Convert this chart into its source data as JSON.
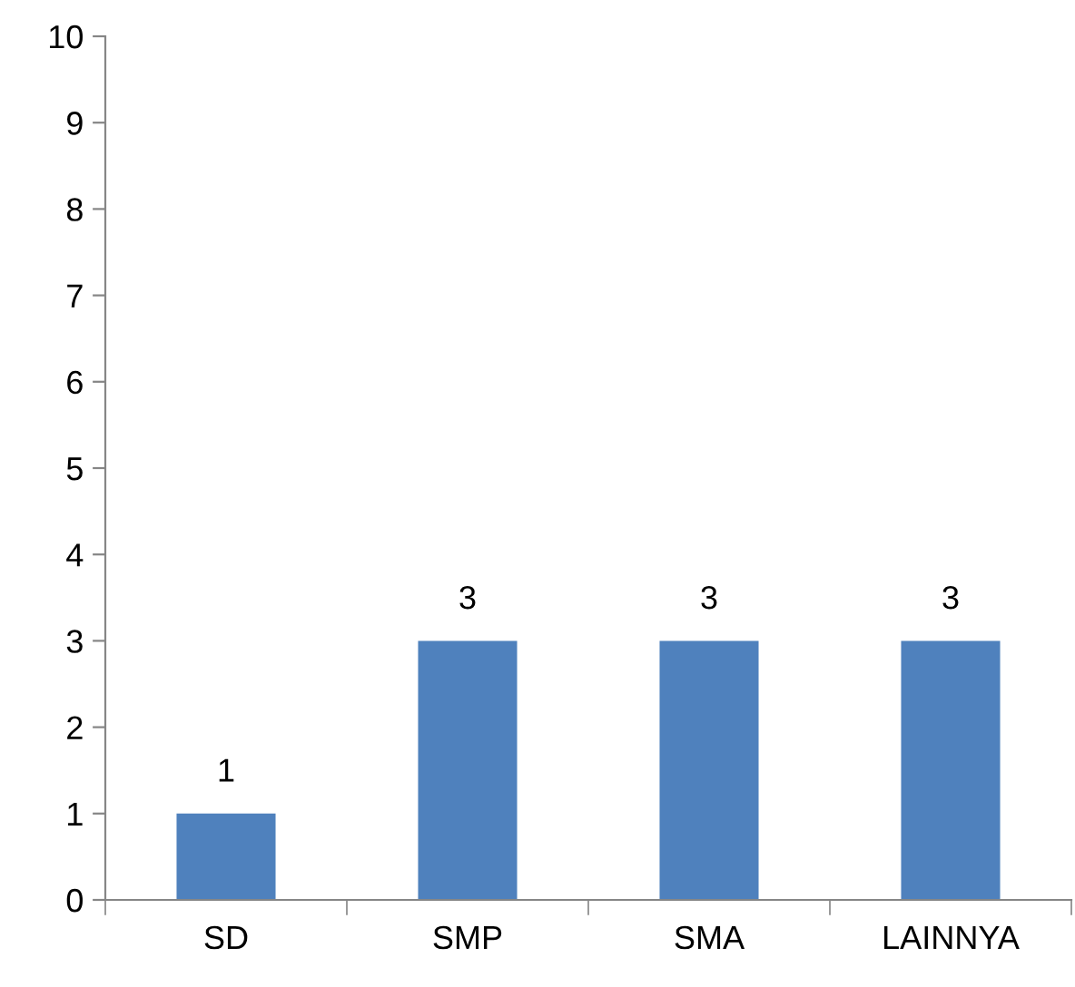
{
  "chart_data": {
    "type": "bar",
    "categories": [
      "SD",
      "SMP",
      "SMA",
      "LAINNYA"
    ],
    "values": [
      1,
      3,
      3,
      3
    ],
    "color": "#4f81bd",
    "ylim": [
      0,
      10
    ],
    "yticks": [
      0,
      1,
      2,
      3,
      4,
      5,
      6,
      7,
      8,
      9,
      10
    ],
    "data_labels": true,
    "grid": false
  }
}
